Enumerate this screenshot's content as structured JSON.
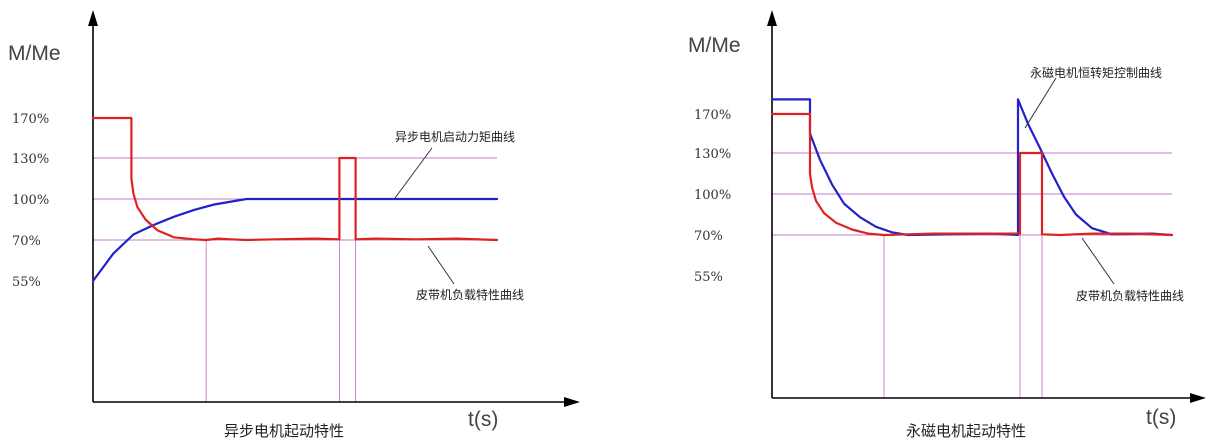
{
  "chart_data": [
    {
      "type": "line",
      "title": "异步电机起动特性",
      "ylabel": "M/Me",
      "xlabel": "t(s)",
      "yticks": [
        "170%",
        "130%",
        "100%",
        "70%",
        "55%"
      ],
      "ytick_values": [
        170,
        130,
        100,
        70,
        55
      ],
      "grid_reference_levels": [
        130,
        100,
        70
      ],
      "series": [
        {
          "name": "异步电机启动力矩曲线",
          "color": "#2222cc",
          "x": [
            0,
            5,
            10,
            15,
            20,
            25,
            30,
            38,
            45,
            60,
            75,
            85,
            100
          ],
          "y": [
            55,
            65,
            74,
            81,
            87,
            92,
            96,
            100,
            100,
            100,
            100,
            100,
            100
          ]
        },
        {
          "name": "皮带机负载特性曲线",
          "color": "#dd2222",
          "x": [
            0,
            9.5,
            9.5,
            10,
            11,
            13,
            16,
            20,
            25,
            28,
            31,
            34,
            38,
            45,
            55,
            61,
            61,
            65,
            65,
            70,
            80,
            90,
            100
          ],
          "y": [
            170,
            170,
            115,
            104,
            94,
            85,
            77,
            72,
            70.5,
            70,
            71,
            70.5,
            70,
            70.5,
            71,
            70.5,
            130,
            130,
            70.5,
            71,
            70.5,
            71,
            70
          ]
        }
      ],
      "vertical_markers_x": [
        28,
        61,
        65
      ]
    },
    {
      "type": "line",
      "title": "永磁电机起动特性",
      "ylabel": "M/Me",
      "xlabel": "t(s)",
      "yticks": [
        "170%",
        "130%",
        "100%",
        "70%",
        "55%"
      ],
      "ytick_values": [
        170,
        130,
        100,
        70,
        55
      ],
      "grid_reference_levels": [
        130,
        100,
        70
      ],
      "series": [
        {
          "name": "永磁电机恒转矩控制曲线",
          "color": "#2222cc",
          "x": [
            0,
            9.5,
            9.5,
            12,
            15,
            18,
            22,
            26,
            30,
            34,
            45,
            55,
            61.5,
            61.5,
            64,
            67,
            70,
            73,
            76,
            80,
            85,
            95,
            100
          ],
          "y": [
            185,
            185,
            150,
            125,
            107,
            93,
            83,
            76,
            72,
            70,
            70.5,
            71,
            70,
            185,
            160,
            135,
            115,
            98,
            85,
            75,
            70.5,
            71,
            70
          ]
        },
        {
          "name": "皮带机负载特性曲线",
          "color": "#dd2222",
          "x": [
            0,
            9.5,
            9.5,
            10,
            11,
            13,
            16,
            20,
            24,
            28,
            34,
            40,
            48,
            62,
            62,
            67.5,
            67.5,
            72,
            80,
            90,
            100
          ],
          "y": [
            170,
            170,
            115,
            105,
            95,
            86,
            79,
            74,
            71,
            70,
            70.5,
            71,
            71,
            71,
            130,
            130,
            70.5,
            70,
            71,
            71,
            70
          ]
        }
      ],
      "vertical_markers_x": [
        28,
        62,
        67.5
      ]
    }
  ]
}
